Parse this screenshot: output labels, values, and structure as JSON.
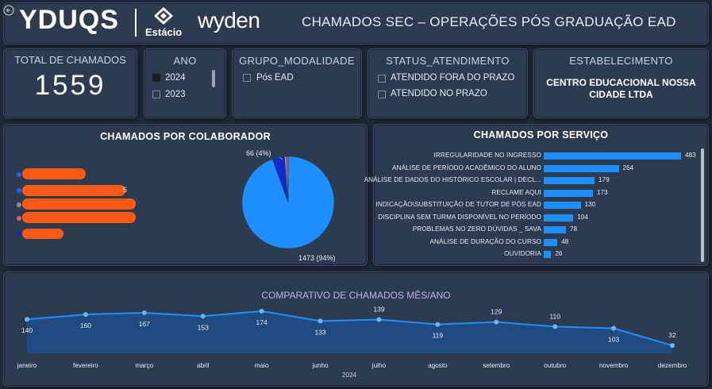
{
  "header": {
    "brand1": "YDUQS",
    "brand2": "Estácio",
    "brand3": "wyden",
    "title": "CHAMADOS SEC – OPERAÇÕES PÓS GRADUAÇÃO EAD"
  },
  "kpi": {
    "label": "TOTAL DE CHAMADOS",
    "value": "1559"
  },
  "ano": {
    "title": "ANO",
    "options": [
      {
        "label": "2024",
        "checked": true
      },
      {
        "label": "2023",
        "checked": false
      }
    ]
  },
  "grupo": {
    "title": "GRUPO_MODALIDADE",
    "options": [
      {
        "label": "Pós EAD",
        "checked": false
      }
    ]
  },
  "status": {
    "title": "STATUS_ATENDIMENTO",
    "options": [
      {
        "label": "ATENDIDO FORA DO PRAZO",
        "checked": false
      },
      {
        "label": "ATENDIDO NO PRAZO",
        "checked": false
      }
    ]
  },
  "estab": {
    "title": "ESTABELECIMENTO",
    "line1": "CENTRO EDUCACIONAL NOSSA",
    "line2": "CIDADE LTDA"
  },
  "colab": {
    "title": "CHAMADOS POR COLABORADOR",
    "legend_dot_colors": [
      "#1e64ff",
      "#1e64ff",
      "#8a8f98",
      "#e06070",
      "#1028c0"
    ],
    "partial_legend_text": "5"
  },
  "servico": {
    "title": "CHAMADOS POR SERVIÇO"
  },
  "comparativo": {
    "title": "COMPARATIVO DE CHAMADOS MÊS/ANO",
    "year": "2024"
  },
  "colors": {
    "accent": "#1e8fff",
    "pie_main": "#1e8fff",
    "pie_second": "#1028d0",
    "redaction": "#ff5a14"
  },
  "chart_data": [
    {
      "type": "pie",
      "title": "CHAMADOS POR COLABORADOR",
      "slices": [
        {
          "value": 1473,
          "label": "1473 (94%)",
          "color": "#1e8fff"
        },
        {
          "value": 66,
          "label": "66 (4%)",
          "color": "#1028d0"
        },
        {
          "value": 12,
          "label": "",
          "color": "#8a8f98"
        },
        {
          "value": 8,
          "label": "",
          "color": "#e06070"
        }
      ]
    },
    {
      "type": "bar",
      "orientation": "horizontal",
      "title": "CHAMADOS POR SERVIÇO",
      "categories": [
        "IRREGULARIDADE NO INGRESSO",
        "ANÁLISE DE PERÍODO ACADÊMICO DO ALUNO",
        "ANÁLISE DE DADOS DO HISTÓRICO ESCOLAR | DECL...",
        "RECLAME AQUI",
        "INDICAÇÃO\\SUBSTITUIÇÃO DE TUTOR DE PÓS EAD",
        "DISCIPLINA SEM TURMA DISPONÍVEL NO PERÍODO",
        "PROBLEMAS NO ZERO DÚVIDAS _ SAVA",
        "ANÁLISE DE DURAÇÃO DO CURSO",
        "OUVIDORIA"
      ],
      "values": [
        483,
        264,
        179,
        173,
        130,
        104,
        78,
        48,
        26
      ]
    },
    {
      "type": "area",
      "title": "COMPARATIVO DE CHAMADOS MÊS/ANO",
      "xlabel": "2024",
      "categories": [
        "janeiro",
        "fevereiro",
        "março",
        "abril",
        "maio",
        "junho",
        "julho",
        "agosto",
        "setembro",
        "outubro",
        "novembro",
        "dezembro"
      ],
      "values": [
        140,
        160,
        167,
        153,
        174,
        133,
        139,
        119,
        129,
        110,
        103,
        32
      ]
    }
  ]
}
